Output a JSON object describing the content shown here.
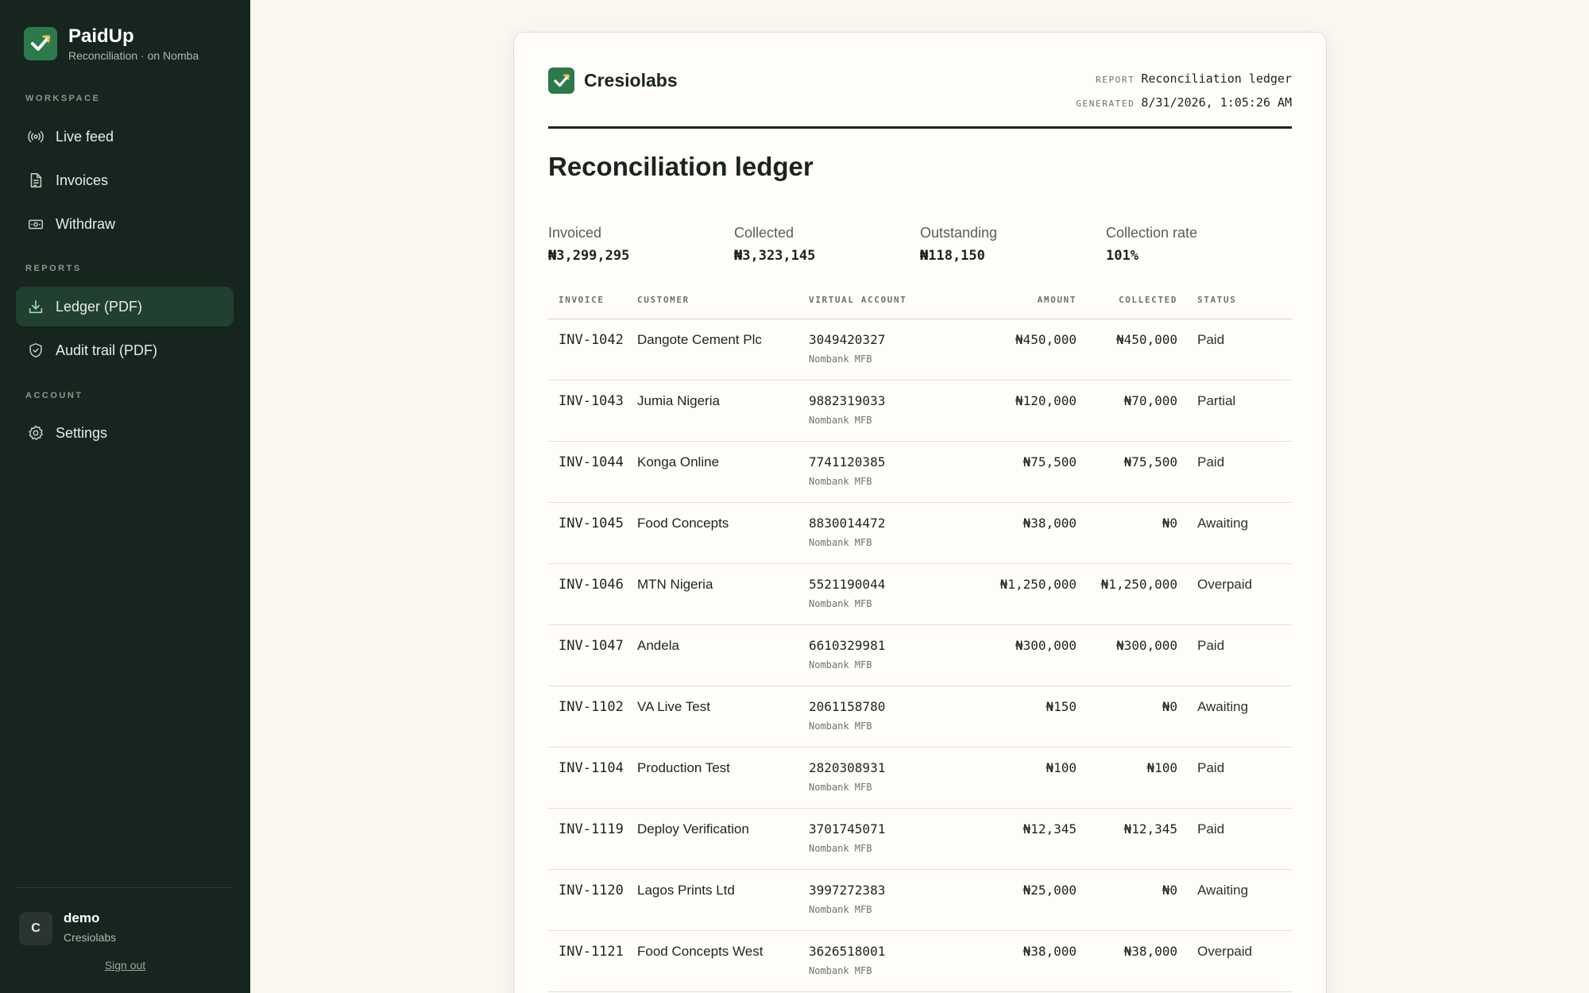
{
  "sidebar": {
    "brand": {
      "name": "PaidUp",
      "subtitle": "Reconciliation · on Nomba"
    },
    "sections": {
      "workspace": "WORKSPACE",
      "reports": "REPORTS",
      "account": "ACCOUNT"
    },
    "items": {
      "live_feed": "Live feed",
      "invoices": "Invoices",
      "withdraw": "Withdraw",
      "ledger_pdf": "Ledger (PDF)",
      "audit_trail_pdf": "Audit trail (PDF)",
      "settings": "Settings"
    },
    "active_item": "ledger_pdf",
    "user": {
      "initial": "C",
      "name": "demo",
      "org": "Cresiolabs"
    },
    "sign_out": "Sign out"
  },
  "report": {
    "company": "Cresiolabs",
    "meta": {
      "report_key": "REPORT",
      "report_value": "Reconciliation ledger",
      "generated_key": "GENERATED",
      "generated_value": "8/31/2026, 1:05:26 AM"
    },
    "title": "Reconciliation ledger",
    "stats": {
      "invoiced": {
        "label": "Invoiced",
        "value": "₦3,299,295"
      },
      "collected": {
        "label": "Collected",
        "value": "₦3,323,145"
      },
      "outstanding": {
        "label": "Outstanding",
        "value": "₦118,150"
      },
      "rate": {
        "label": "Collection rate",
        "value": "101%"
      }
    },
    "columns": {
      "invoice": "INVOICE",
      "customer": "CUSTOMER",
      "virtual_account": "VIRTUAL ACCOUNT",
      "amount": "AMOUNT",
      "collected": "COLLECTED",
      "status": "STATUS"
    },
    "rows": [
      {
        "invoice": "INV-1042",
        "customer": "Dangote Cement Plc",
        "account": "3049420327",
        "bank": "Nombank MFB",
        "amount": "₦450,000",
        "collected": "₦450,000",
        "status": "Paid"
      },
      {
        "invoice": "INV-1043",
        "customer": "Jumia Nigeria",
        "account": "9882319033",
        "bank": "Nombank MFB",
        "amount": "₦120,000",
        "collected": "₦70,000",
        "status": "Partial"
      },
      {
        "invoice": "INV-1044",
        "customer": "Konga Online",
        "account": "7741120385",
        "bank": "Nombank MFB",
        "amount": "₦75,500",
        "collected": "₦75,500",
        "status": "Paid"
      },
      {
        "invoice": "INV-1045",
        "customer": "Food Concepts",
        "account": "8830014472",
        "bank": "Nombank MFB",
        "amount": "₦38,000",
        "collected": "₦0",
        "status": "Awaiting"
      },
      {
        "invoice": "INV-1046",
        "customer": "MTN Nigeria",
        "account": "5521190044",
        "bank": "Nombank MFB",
        "amount": "₦1,250,000",
        "collected": "₦1,250,000",
        "status": "Overpaid"
      },
      {
        "invoice": "INV-1047",
        "customer": "Andela",
        "account": "6610329981",
        "bank": "Nombank MFB",
        "amount": "₦300,000",
        "collected": "₦300,000",
        "status": "Paid"
      },
      {
        "invoice": "INV-1102",
        "customer": "VA Live Test",
        "account": "2061158780",
        "bank": "Nombank MFB",
        "amount": "₦150",
        "collected": "₦0",
        "status": "Awaiting"
      },
      {
        "invoice": "INV-1104",
        "customer": "Production Test",
        "account": "2820308931",
        "bank": "Nombank MFB",
        "amount": "₦100",
        "collected": "₦100",
        "status": "Paid"
      },
      {
        "invoice": "INV-1119",
        "customer": "Deploy Verification",
        "account": "3701745071",
        "bank": "Nombank MFB",
        "amount": "₦12,345",
        "collected": "₦12,345",
        "status": "Paid"
      },
      {
        "invoice": "INV-1120",
        "customer": "Lagos Prints Ltd",
        "account": "3997272383",
        "bank": "Nombank MFB",
        "amount": "₦25,000",
        "collected": "₦0",
        "status": "Awaiting"
      },
      {
        "invoice": "INV-1121",
        "customer": "Food Concepts West",
        "account": "3626518001",
        "bank": "Nombank MFB",
        "amount": "₦38,000",
        "collected": "₦38,000",
        "status": "Overpaid"
      }
    ]
  },
  "colors": {
    "sidebar_bg": "#16261f",
    "active_item_bg": "#21402f",
    "brand_green": "#2c7a4b",
    "page_bg": "#fbf6ee"
  },
  "icons": {
    "live_feed": "broadcast-icon",
    "invoices": "document-icon",
    "withdraw": "banknote-icon",
    "ledger_pdf": "download-icon",
    "audit_trail_pdf": "shield-check-icon",
    "settings": "gear-icon"
  }
}
